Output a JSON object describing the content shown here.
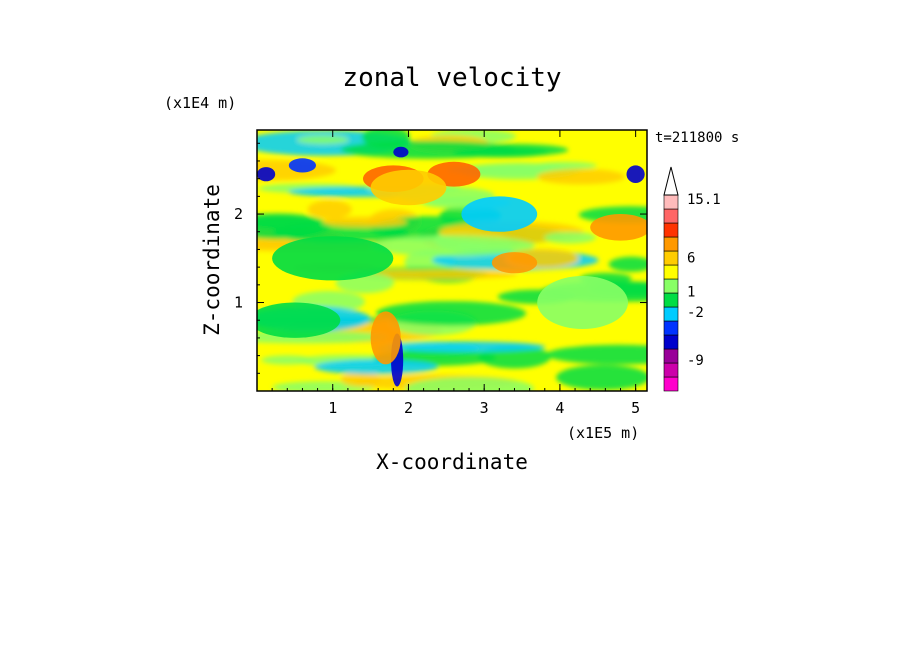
{
  "chart_data": {
    "type": "heatmap",
    "title": "zonal velocity",
    "xlabel": "X-coordinate",
    "ylabel": "Z-coordinate",
    "x_unit": "(x1E5 m)",
    "y_unit": "(x1E4 m)",
    "time_label": "t=211800 s",
    "xlim": [
      0,
      5.15
    ],
    "ylim": [
      0,
      2.95
    ],
    "x_ticks": [
      1,
      2,
      3,
      4,
      5
    ],
    "y_ticks": [
      1,
      2
    ],
    "colorbar": {
      "colors": [
        "#ff00cc",
        "#cc00aa",
        "#990099",
        "#0000cc",
        "#0033ff",
        "#00ccff",
        "#00dd44",
        "#88ff66",
        "#ffff00",
        "#ffcc00",
        "#ff9900",
        "#ff3300",
        "#ff6666",
        "#ffbbbb"
      ],
      "labels": [
        {
          "text": "15.1",
          "value": 15.1
        },
        {
          "text": "6",
          "value": 6
        },
        {
          "text": "1",
          "value": 1
        },
        {
          "text": "-2",
          "value": -2
        },
        {
          "text": "-9",
          "value": -9
        }
      ],
      "extend_max": true
    },
    "features": [
      {
        "kind": "blob",
        "x": 0.12,
        "z": 2.45,
        "sx": 0.12,
        "sz": 0.08,
        "color": "#0000cc"
      },
      {
        "kind": "blob",
        "x": 0.6,
        "z": 2.55,
        "sx": 0.18,
        "sz": 0.08,
        "color": "#0033ff"
      },
      {
        "kind": "blob",
        "x": 1.9,
        "z": 2.7,
        "sx": 0.1,
        "sz": 0.06,
        "color": "#0000cc"
      },
      {
        "kind": "blob",
        "x": 5.0,
        "z": 2.45,
        "sx": 0.12,
        "sz": 0.1,
        "color": "#0000cc"
      },
      {
        "kind": "blob",
        "x": 1.8,
        "z": 2.4,
        "sx": 0.4,
        "sz": 0.15,
        "color": "#ff6600"
      },
      {
        "kind": "blob",
        "x": 2.6,
        "z": 2.45,
        "sx": 0.35,
        "sz": 0.14,
        "color": "#ff6600"
      },
      {
        "kind": "blob",
        "x": 2.0,
        "z": 2.3,
        "sx": 0.5,
        "sz": 0.2,
        "color": "#ffcc00"
      },
      {
        "kind": "blob",
        "x": 3.2,
        "z": 2.0,
        "sx": 0.5,
        "sz": 0.2,
        "color": "#00ccff"
      },
      {
        "kind": "blob",
        "x": 4.8,
        "z": 1.85,
        "sx": 0.4,
        "sz": 0.15,
        "color": "#ff9900"
      },
      {
        "kind": "blob",
        "x": 3.4,
        "z": 1.45,
        "sx": 0.3,
        "sz": 0.12,
        "color": "#ff9900"
      },
      {
        "kind": "blob",
        "x": 1.85,
        "z": 0.35,
        "sx": 0.08,
        "sz": 0.3,
        "color": "#0000cc"
      },
      {
        "kind": "blob",
        "x": 1.7,
        "z": 0.6,
        "sx": 0.2,
        "sz": 0.3,
        "color": "#ff9900"
      },
      {
        "kind": "blob",
        "x": 0.5,
        "z": 0.8,
        "sx": 0.6,
        "sz": 0.2,
        "color": "#00dd44"
      },
      {
        "kind": "blob",
        "x": 4.3,
        "z": 1.0,
        "sx": 0.6,
        "sz": 0.3,
        "color": "#88ff66"
      },
      {
        "kind": "blob",
        "x": 1.0,
        "z": 1.5,
        "sx": 0.8,
        "sz": 0.25,
        "color": "#00dd44"
      }
    ]
  }
}
